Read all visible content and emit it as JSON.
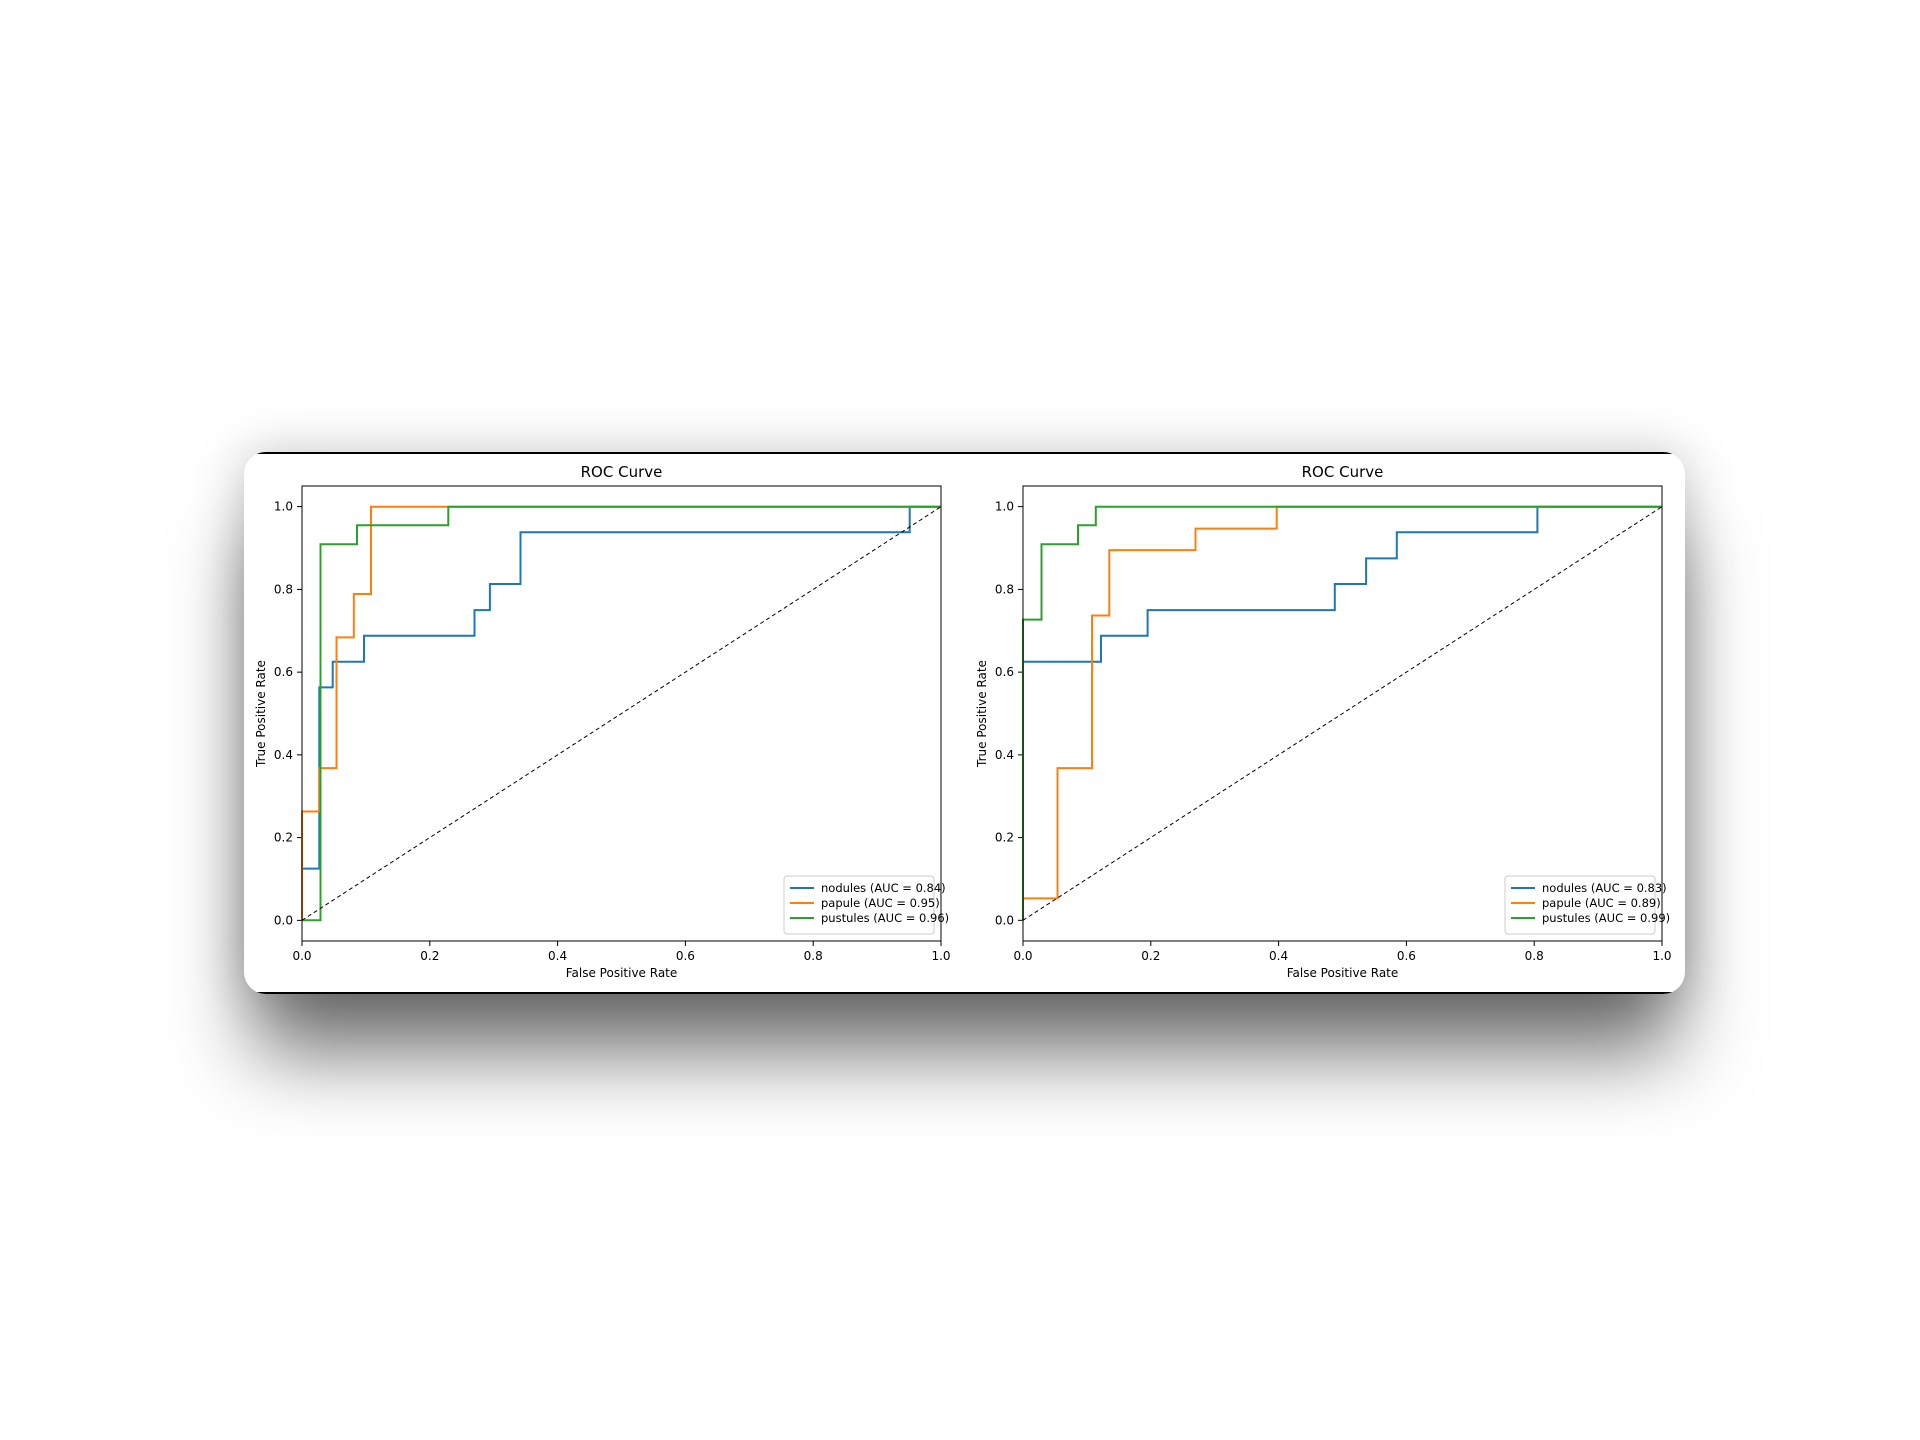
{
  "chart_data": [
    {
      "type": "line",
      "title": "ROC Curve",
      "xlabel": "False Positive Rate",
      "ylabel": "True Positive Rate",
      "xlim": [
        0,
        1
      ],
      "ylim": [
        0,
        1
      ],
      "xticks": [
        "0.0",
        "0.2",
        "0.4",
        "0.6",
        "0.8",
        "1.0"
      ],
      "yticks": [
        "0.0",
        "0.2",
        "0.4",
        "0.6",
        "0.8",
        "1.0"
      ],
      "grid": false,
      "legend_position": "lower-right",
      "series": [
        {
          "name": "nodules (AUC = 0.84)",
          "color": "#1f77b4",
          "x": [
            0,
            0,
            0.027,
            0.027,
            0.048,
            0.048,
            0.097,
            0.097,
            0.27,
            0.27,
            0.294,
            0.294,
            0.342,
            0.342,
            0.951,
            0.951,
            1.0
          ],
          "y": [
            0,
            0.125,
            0.125,
            0.563,
            0.563,
            0.625,
            0.625,
            0.688,
            0.688,
            0.75,
            0.75,
            0.813,
            0.813,
            0.938,
            0.938,
            1.0,
            1.0
          ]
        },
        {
          "name": "papule (AUC = 0.95)",
          "color": "#ff7f0e",
          "x": [
            0,
            0,
            0.027,
            0.027,
            0.054,
            0.054,
            0.081,
            0.081,
            0.108,
            0.108,
            1.0
          ],
          "y": [
            0,
            0.263,
            0.263,
            0.368,
            0.368,
            0.684,
            0.684,
            0.789,
            0.789,
            1.0,
            1.0
          ]
        },
        {
          "name": "pustules (AUC = 0.96)",
          "color": "#2ca02c",
          "x": [
            0,
            0.029,
            0.029,
            0.086,
            0.086,
            0.229,
            0.229,
            1.0
          ],
          "y": [
            0,
            0,
            0.909,
            0.909,
            0.955,
            0.955,
            1.0,
            1.0
          ]
        },
        {
          "name": "",
          "color": "#000000",
          "dashed": true,
          "x": [
            0,
            1
          ],
          "y": [
            0,
            1
          ]
        }
      ]
    },
    {
      "type": "line",
      "title": "ROC Curve",
      "xlabel": "False Positive Rate",
      "ylabel": "True Positive Rate",
      "xlim": [
        0,
        1
      ],
      "ylim": [
        0,
        1
      ],
      "xticks": [
        "0.0",
        "0.2",
        "0.4",
        "0.6",
        "0.8",
        "1.0"
      ],
      "yticks": [
        "0.0",
        "0.2",
        "0.4",
        "0.6",
        "0.8",
        "1.0"
      ],
      "grid": false,
      "legend_position": "lower-right",
      "series": [
        {
          "name": "nodules (AUC = 0.83)",
          "color": "#1f77b4",
          "x": [
            0,
            0,
            0.122,
            0.122,
            0.195,
            0.195,
            0.488,
            0.488,
            0.537,
            0.537,
            0.585,
            0.585,
            0.805,
            0.805,
            1.0
          ],
          "y": [
            0,
            0.625,
            0.625,
            0.688,
            0.688,
            0.75,
            0.75,
            0.813,
            0.813,
            0.875,
            0.875,
            0.938,
            0.938,
            1.0,
            1.0
          ]
        },
        {
          "name": "papule (AUC = 0.89)",
          "color": "#ff7f0e",
          "x": [
            0,
            0,
            0.054,
            0.054,
            0.108,
            0.108,
            0.135,
            0.135,
            0.27,
            0.27,
            0.397,
            0.397,
            1.0
          ],
          "y": [
            0,
            0.053,
            0.053,
            0.368,
            0.368,
            0.737,
            0.737,
            0.895,
            0.895,
            0.947,
            0.947,
            1.0,
            1.0
          ]
        },
        {
          "name": "pustules (AUC = 0.99)",
          "color": "#2ca02c",
          "x": [
            0,
            0,
            0.029,
            0.029,
            0.086,
            0.086,
            0.114,
            0.114,
            1.0
          ],
          "y": [
            0,
            0.727,
            0.727,
            0.909,
            0.909,
            0.955,
            0.955,
            1.0,
            1.0
          ]
        },
        {
          "name": "",
          "color": "#000000",
          "dashed": true,
          "x": [
            0,
            1
          ],
          "y": [
            0,
            1
          ]
        }
      ]
    }
  ]
}
